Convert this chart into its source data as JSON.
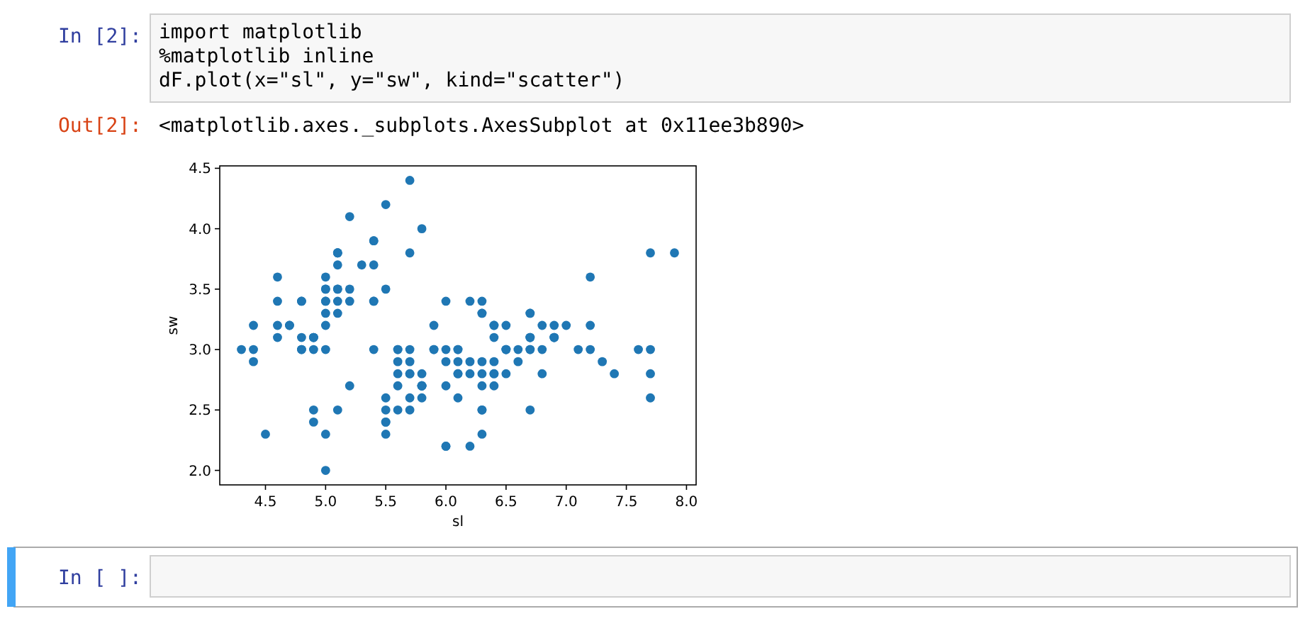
{
  "chart_data": {
    "type": "scatter",
    "xlabel": "sl",
    "ylabel": "sw",
    "color": "#1f77b4",
    "marker": "circle",
    "grid": false,
    "xlim": [
      4.12,
      8.08
    ],
    "ylim": [
      1.88,
      4.52
    ],
    "xticks": [
      4.5,
      {
        "value": 5,
        "label": "5.0"
      },
      5.5,
      {
        "value": 6,
        "label": "6.0"
      },
      6.5,
      {
        "value": 7,
        "label": "7.0"
      },
      7.5,
      {
        "value": 8,
        "label": "8.0"
      }
    ],
    "yticks": [
      {
        "value": 2,
        "label": "2.0"
      },
      2.5,
      {
        "value": 3,
        "label": "3.0"
      },
      3.5,
      {
        "value": 4,
        "label": "4.0"
      },
      4.5
    ],
    "x": [
      5.1,
      4.9,
      4.7,
      4.6,
      5.0,
      5.4,
      4.6,
      5.0,
      4.4,
      4.9,
      5.4,
      4.8,
      4.8,
      4.3,
      5.8,
      5.7,
      5.4,
      5.1,
      5.7,
      5.1,
      5.4,
      5.1,
      4.6,
      5.1,
      4.8,
      5.0,
      5.0,
      5.2,
      5.2,
      4.7,
      4.8,
      5.4,
      5.2,
      5.5,
      4.9,
      5.0,
      5.5,
      4.9,
      4.4,
      5.1,
      5.0,
      4.5,
      4.4,
      5.0,
      5.1,
      4.8,
      5.1,
      4.6,
      5.3,
      5.0,
      7.0,
      6.4,
      6.9,
      5.5,
      6.5,
      5.7,
      6.3,
      4.9,
      6.6,
      5.2,
      5.0,
      5.9,
      6.0,
      6.1,
      5.6,
      6.7,
      5.6,
      5.8,
      6.2,
      5.6,
      5.9,
      6.1,
      6.3,
      6.1,
      6.4,
      6.6,
      6.8,
      6.7,
      6.0,
      5.7,
      5.5,
      5.5,
      5.8,
      6.0,
      5.4,
      6.0,
      6.7,
      6.3,
      5.6,
      5.5,
      5.5,
      6.1,
      5.8,
      5.0,
      5.6,
      5.7,
      5.7,
      6.2,
      5.1,
      5.7,
      6.3,
      5.8,
      7.1,
      6.3,
      6.5,
      7.6,
      4.9,
      7.3,
      6.7,
      7.2,
      6.5,
      6.4,
      6.8,
      5.7,
      5.8,
      6.4,
      6.5,
      7.7,
      7.7,
      6.0,
      6.9,
      5.6,
      7.7,
      6.3,
      6.7,
      7.2,
      6.2,
      6.1,
      6.4,
      7.2,
      7.4,
      7.9,
      6.4,
      6.3,
      6.1,
      7.7,
      6.3,
      6.4,
      6.0,
      6.9,
      6.7,
      6.9,
      5.8,
      6.8,
      6.7,
      6.7,
      6.3,
      6.5,
      6.2,
      5.9
    ],
    "values": [
      3.5,
      3.0,
      3.2,
      3.1,
      3.6,
      3.9,
      3.4,
      3.4,
      2.9,
      3.1,
      3.7,
      3.4,
      3.0,
      3.0,
      4.0,
      4.4,
      3.9,
      3.5,
      3.8,
      3.8,
      3.4,
      3.7,
      3.6,
      3.3,
      3.4,
      3.0,
      3.4,
      3.5,
      3.4,
      3.2,
      3.1,
      3.4,
      4.1,
      4.2,
      3.1,
      3.2,
      3.5,
      3.1,
      3.0,
      3.4,
      3.5,
      2.3,
      3.2,
      3.5,
      3.8,
      3.0,
      3.8,
      3.2,
      3.7,
      3.3,
      3.2,
      3.2,
      3.1,
      2.3,
      2.8,
      2.8,
      3.3,
      2.4,
      2.9,
      2.7,
      2.0,
      3.0,
      2.2,
      2.9,
      2.9,
      3.1,
      3.0,
      2.7,
      2.2,
      2.5,
      3.2,
      2.8,
      2.5,
      2.8,
      2.9,
      3.0,
      2.8,
      3.0,
      2.9,
      2.6,
      2.4,
      2.4,
      2.7,
      2.7,
      3.0,
      3.4,
      3.1,
      2.3,
      3.0,
      2.5,
      2.6,
      3.0,
      2.6,
      2.3,
      2.7,
      3.0,
      2.9,
      2.9,
      2.5,
      2.8,
      3.3,
      2.7,
      3.0,
      2.9,
      3.0,
      3.0,
      2.5,
      2.9,
      2.5,
      3.6,
      3.2,
      2.7,
      3.0,
      2.5,
      2.8,
      3.2,
      3.0,
      3.8,
      2.6,
      2.2,
      3.2,
      2.8,
      2.8,
      2.7,
      3.3,
      3.2,
      2.8,
      3.0,
      2.8,
      3.0,
      2.8,
      3.8,
      2.8,
      2.8,
      2.6,
      3.0,
      3.4,
      3.1,
      3.0,
      3.1,
      3.1,
      3.1,
      2.7,
      3.2,
      3.3,
      3.0,
      2.5,
      3.0,
      3.4,
      3.0
    ],
    "annotations": [
      "In [2]:",
      "import matplotlib",
      "%matplotlib inline",
      "dF.plot(x=\"sl\", y=\"sw\", kind=\"scatter\")",
      "Out[2]:",
      "<matplotlib.axes._subplots.AxesSubplot at 0x11ee3b890>",
      "In [ ]:"
    ]
  }
}
